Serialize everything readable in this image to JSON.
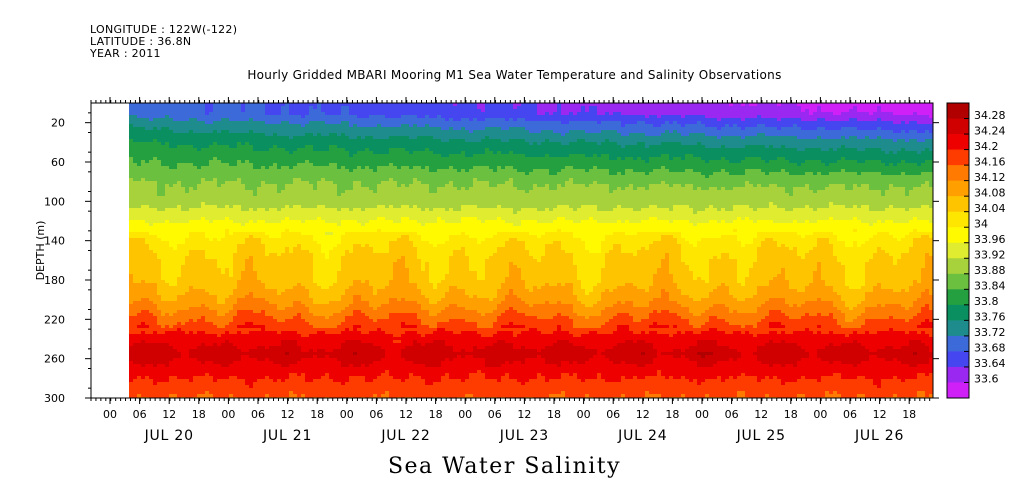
{
  "header": {
    "longitude": "LONGITUDE : 122W(-122)",
    "latitude": "LATITUDE : 36.8N",
    "year": "YEAR : 2011",
    "title": "Hourly Gridded MBARI Mooring M1 Sea Water Temperature and Salinity Observations",
    "bottom_label": "Sea Water Salinity"
  },
  "chart_data": {
    "type": "heatmap",
    "title": "Hourly Gridded MBARI Mooring M1 Sea Water Temperature and Salinity Observations",
    "xlabel": "",
    "ylabel": "DEPTH (m)",
    "variable": "Sea Water Salinity",
    "y_range": [
      300,
      0
    ],
    "y_ticks": [
      20,
      60,
      100,
      140,
      180,
      220,
      260,
      300
    ],
    "x_hour_ticks": [
      "00",
      "06",
      "12",
      "18",
      "00",
      "06",
      "12",
      "18",
      "00",
      "06",
      "12",
      "18",
      "00",
      "06",
      "12",
      "18",
      "00",
      "06",
      "12",
      "18",
      "00",
      "06",
      "12",
      "18",
      "00",
      "06",
      "12",
      "18"
    ],
    "x_day_labels": [
      "JUL 20",
      "JUL 21",
      "JUL 22",
      "JUL 23",
      "JUL 24",
      "JUL 25",
      "JUL 26"
    ],
    "colorbar": {
      "levels": [
        34.28,
        34.24,
        34.2,
        34.16,
        34.12,
        34.08,
        34.04,
        34,
        33.96,
        33.92,
        33.88,
        33.84,
        33.8,
        33.76,
        33.72,
        33.68,
        33.64,
        33.6
      ],
      "labels": [
        "34.28",
        "34.24",
        "34.2",
        "34.16",
        "34.12",
        "34.08",
        "34.04",
        "34",
        "33.96",
        "33.92",
        "33.88",
        "33.84",
        "33.8",
        "33.76",
        "33.72",
        "33.68",
        "33.64",
        "33.6"
      ],
      "colors": [
        "#b00000",
        "#d00000",
        "#ee0000",
        "#ff3c00",
        "#ff7a00",
        "#ffa000",
        "#ffc400",
        "#ffe600",
        "#fffa00",
        "#e0ec30",
        "#a8d23c",
        "#6cc040",
        "#24a040",
        "#0a9060",
        "#1e8c8c",
        "#3c6ad8",
        "#4646f0",
        "#9a28f0",
        "#d020f8"
      ]
    },
    "depth_profile": [
      {
        "depth": 10,
        "value": 33.7
      },
      {
        "depth": 20,
        "value": 33.74
      },
      {
        "depth": 40,
        "value": 33.8
      },
      {
        "depth": 60,
        "value": 33.84
      },
      {
        "depth": 80,
        "value": 33.88
      },
      {
        "depth": 100,
        "value": 33.9
      },
      {
        "depth": 120,
        "value": 33.96
      },
      {
        "depth": 140,
        "value": 34.02
      },
      {
        "depth": 160,
        "value": 34.05
      },
      {
        "depth": 180,
        "value": 34.06
      },
      {
        "depth": 200,
        "value": 34.1
      },
      {
        "depth": 220,
        "value": 34.16
      },
      {
        "depth": 240,
        "value": 34.22
      },
      {
        "depth": 255,
        "value": 34.26
      },
      {
        "depth": 270,
        "value": 34.22
      },
      {
        "depth": 290,
        "value": 34.18
      },
      {
        "depth": 300,
        "value": 34.16
      }
    ]
  }
}
